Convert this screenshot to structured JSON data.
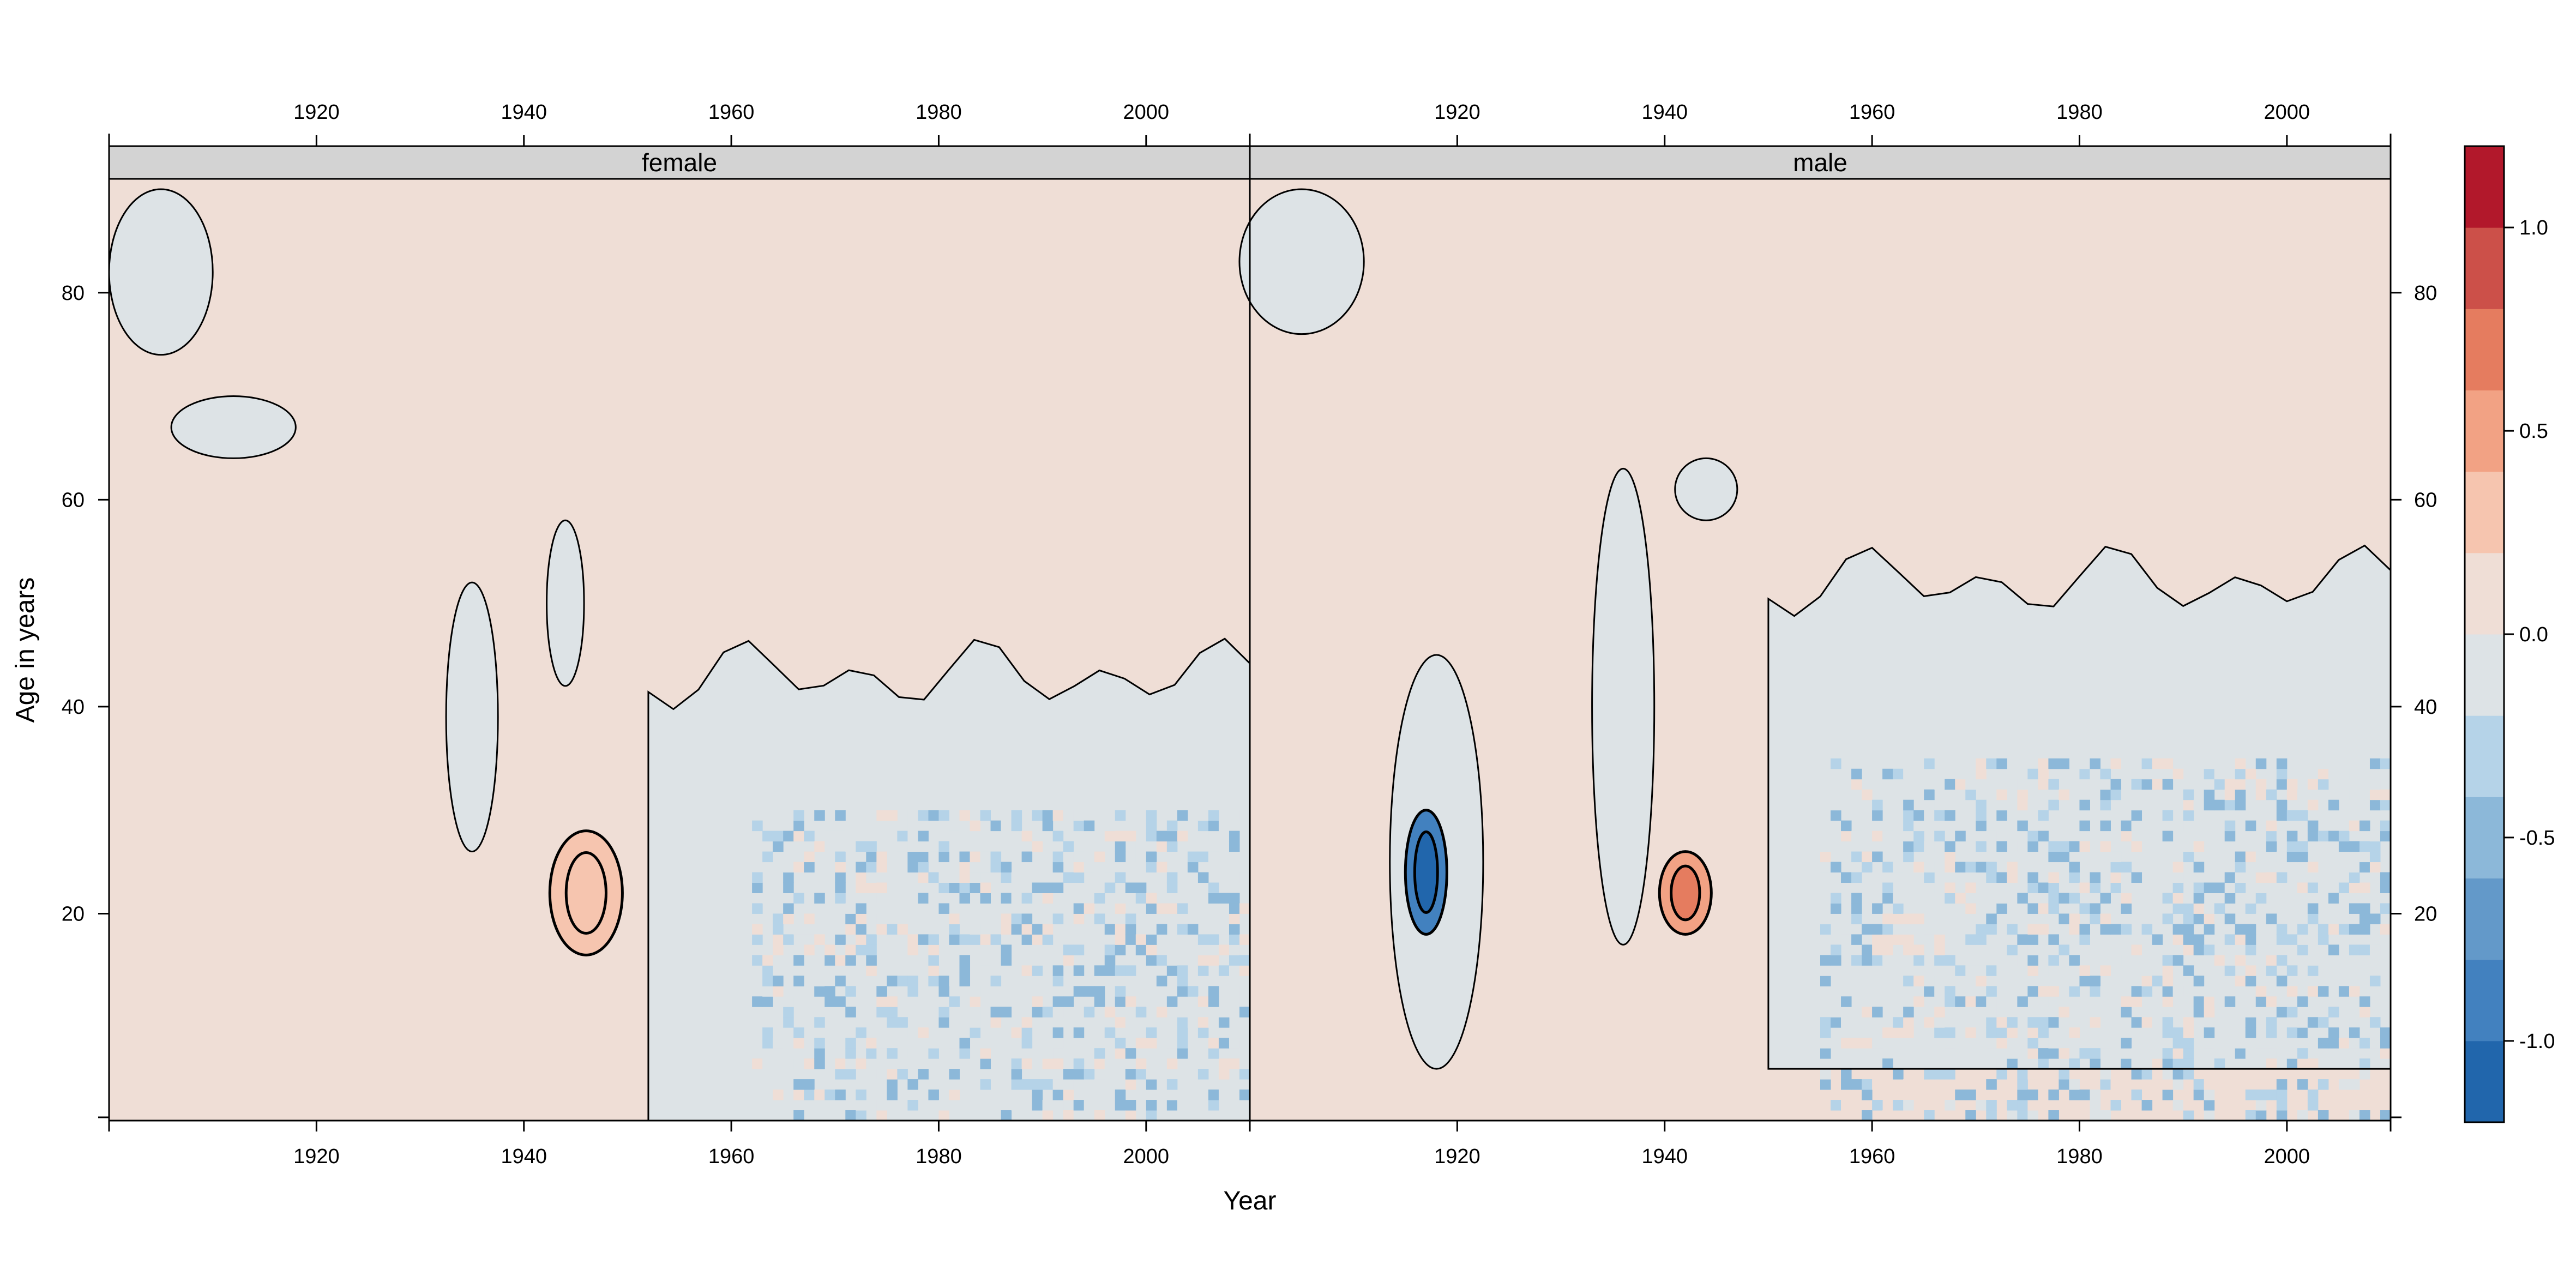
{
  "chart_data": {
    "type": "heatmap",
    "xlabel": "Year",
    "ylabel": "Age in years",
    "xlim": [
      1900,
      2010
    ],
    "ylim": [
      0,
      91
    ],
    "x_ticks": [
      "1920",
      "1940",
      "1960",
      "1980",
      "2000"
    ],
    "x_tick_values": [
      1920,
      1940,
      1960,
      1980,
      2000
    ],
    "y_ticks": [
      "20",
      "40",
      "60",
      "80"
    ],
    "y_tick_values": [
      20,
      40,
      60,
      80
    ],
    "colorbar": {
      "range": [
        -1.2,
        1.2
      ],
      "step": 0.2,
      "tick_labels": [
        "1.0",
        "0.5",
        "0.0",
        "-0.5",
        "-1.0"
      ],
      "tick_values": [
        1.0,
        0.5,
        0.0,
        -0.5,
        -1.0
      ],
      "palette": [
        "#2166ac",
        "#4281bf",
        "#6399c9",
        "#8cb8d9",
        "#b5d3e8",
        "#dde3e6",
        "#efded6",
        "#f6c5af",
        "#f2a284",
        "#e57c5f",
        "#cc5049",
        "#b2182b"
      ]
    },
    "panels": [
      {
        "name": "female",
        "background_value": 0.05,
        "features": [
          {
            "kind": "pocket",
            "value": -0.05,
            "x": 1905,
            "y": 82,
            "dx": 5,
            "dy": 8
          },
          {
            "kind": "pocket",
            "value": -0.05,
            "x": 1912,
            "y": 67,
            "dx": 6,
            "dy": 3
          },
          {
            "kind": "pocket",
            "value": -0.05,
            "x": 1935,
            "y": 39,
            "dx": 2.5,
            "dy": 13
          },
          {
            "kind": "pocket",
            "value": -0.05,
            "x": 1944,
            "y": 50,
            "dx": 1.8,
            "dy": 8
          },
          {
            "kind": "hotspot",
            "value": 0.22,
            "x": 1946,
            "y": 22,
            "dx": 3.5,
            "dy": 6
          },
          {
            "kind": "region",
            "value": -0.05,
            "x_from": 1952,
            "x_to": 2010,
            "y_from": 0,
            "y_to": 43
          },
          {
            "kind": "speckle",
            "x_from": 1962,
            "x_to": 2010,
            "y_from": 0,
            "y_to": 30,
            "range": [
              -0.6,
              0.15
            ]
          }
        ]
      },
      {
        "name": "male",
        "background_value": 0.05,
        "features": [
          {
            "kind": "pocket",
            "value": -0.05,
            "x": 1905,
            "y": 83,
            "dx": 6,
            "dy": 7
          },
          {
            "kind": "pocket",
            "value": -0.05,
            "x": 1918,
            "y": 25,
            "dx": 4.5,
            "dy": 20
          },
          {
            "kind": "hotspot",
            "value": -0.9,
            "x": 1917,
            "y": 24,
            "dx": 2,
            "dy": 6
          },
          {
            "kind": "pocket",
            "value": -0.05,
            "x": 1936,
            "y": 40,
            "dx": 3,
            "dy": 23
          },
          {
            "kind": "pocket",
            "value": -0.05,
            "x": 1944,
            "y": 61,
            "dx": 3,
            "dy": 3
          },
          {
            "kind": "hotspot",
            "value": 0.55,
            "x": 1942,
            "y": 22,
            "dx": 2.5,
            "dy": 4
          },
          {
            "kind": "region",
            "value": -0.05,
            "x_from": 1950,
            "x_to": 2010,
            "y_from": 5,
            "y_to": 52
          },
          {
            "kind": "speckle",
            "x_from": 1955,
            "x_to": 2010,
            "y_from": 0,
            "y_to": 35,
            "range": [
              -0.6,
              0.15
            ]
          }
        ]
      }
    ]
  }
}
